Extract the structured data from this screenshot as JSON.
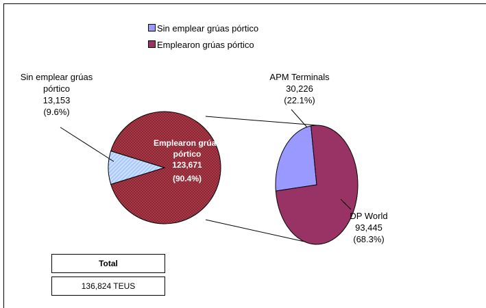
{
  "chart_data": {
    "type": "pie-of-pie",
    "main": {
      "categories": [
        "Sin emplear grúas pórtico",
        "Emplearon grúas pórtico"
      ],
      "values": [
        13153,
        123671
      ],
      "value_labels": [
        "13,153",
        "123,671"
      ],
      "percent_labels": [
        "(9.6%)",
        "(90.4%)"
      ],
      "colors": [
        "#9999ff",
        "#993366"
      ]
    },
    "secondary": {
      "categories": [
        "APM Terminals",
        "DP World"
      ],
      "values": [
        30226,
        93445
      ],
      "value_labels": [
        "30,226",
        "93,445"
      ],
      "percent_labels": [
        "(22.1%)",
        "(68.3%)"
      ],
      "colors": [
        "#9999ff",
        "#993366"
      ]
    },
    "legend": true,
    "total": {
      "label": "Total",
      "value": "136,824 TEUS"
    }
  }
}
